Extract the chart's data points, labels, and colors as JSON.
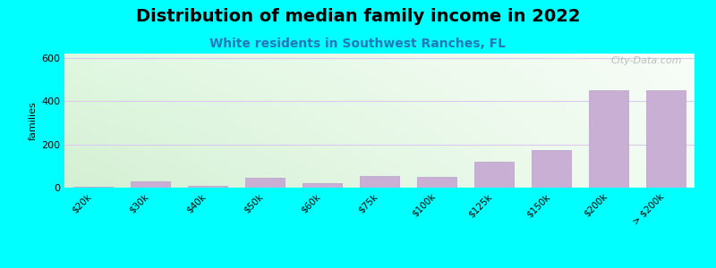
{
  "title": "Distribution of median family income in 2022",
  "subtitle": "White residents in Southwest Ranches, FL",
  "ylabel": "families",
  "categories": [
    "$20k",
    "$30k",
    "$40k",
    "$50k",
    "$60k",
    "$75k",
    "$100k",
    "$125k",
    "$150k",
    "$200k",
    "> $200k"
  ],
  "values": [
    5,
    30,
    10,
    45,
    20,
    55,
    50,
    120,
    175,
    450,
    450
  ],
  "ylim": [
    0,
    620
  ],
  "yticks": [
    0,
    200,
    400,
    600
  ],
  "bar_color": "#c9afd4",
  "bar_edge_color": "#b8a0c8",
  "outer_bg": "#00ffff",
  "title_fontsize": 14,
  "subtitle_fontsize": 10,
  "subtitle_color": "#2277bb",
  "watermark": "City-Data.com",
  "bg_color_topleft": [
    0.88,
    0.97,
    0.88
  ],
  "bg_color_topright": [
    0.97,
    0.99,
    0.97
  ],
  "bg_color_bottomleft": [
    0.83,
    0.94,
    0.83
  ],
  "bg_color_bottomright": [
    0.95,
    0.99,
    0.95
  ]
}
